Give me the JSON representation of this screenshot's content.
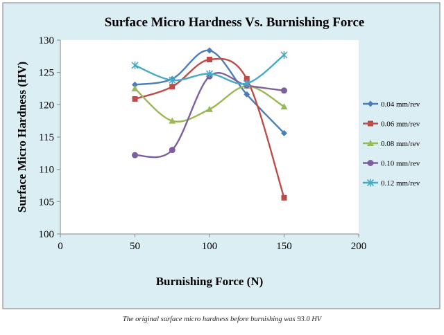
{
  "chart_data": {
    "type": "line",
    "title": "Surface Micro Hardness Vs.  Burnishing Force",
    "xlabel": "Burnishing Force (N)",
    "ylabel": "Surface Micro Hardness (HV)",
    "xlim": [
      0,
      200
    ],
    "ylim": [
      100,
      130
    ],
    "x_ticks": [
      0,
      50,
      100,
      150,
      200
    ],
    "y_ticks": [
      100,
      105,
      110,
      115,
      120,
      125,
      130
    ],
    "legend_position": "right",
    "grid": false,
    "smoothed": true,
    "series": [
      {
        "name": "0.04 mm/rev",
        "color": "#4a7ebb",
        "marker": "diamond",
        "x": [
          50,
          75,
          100,
          125,
          150
        ],
        "y": [
          123.1,
          124.0,
          128.4,
          121.6,
          115.6
        ]
      },
      {
        "name": "0.06 mm/rev",
        "color": "#be4b48",
        "marker": "square",
        "x": [
          50,
          75,
          100,
          125,
          150
        ],
        "y": [
          120.9,
          122.8,
          127.0,
          124.0,
          105.6
        ]
      },
      {
        "name": "0.08 mm/rev",
        "color": "#98b954",
        "marker": "triangle",
        "x": [
          50,
          75,
          100,
          125,
          150
        ],
        "y": [
          122.5,
          117.5,
          119.3,
          122.9,
          119.7
        ]
      },
      {
        "name": "0.10 mm/rev",
        "color": "#7d5fa0",
        "marker": "circle",
        "x": [
          50,
          75,
          100,
          125,
          150
        ],
        "y": [
          112.2,
          113.0,
          124.4,
          123.0,
          122.2
        ]
      },
      {
        "name": "0.12 mm/rev",
        "color": "#46aac5",
        "marker": "star",
        "x": [
          50,
          75,
          100,
          125,
          150
        ],
        "y": [
          126.1,
          123.8,
          124.8,
          123.3,
          127.7
        ]
      }
    ]
  },
  "caption": "The original surface micro hardness before burnishing was 93.0 HV",
  "colors": {
    "chart_background": "#dbeef4",
    "plot_background": "#ffffff",
    "border": "#7f7f7f"
  }
}
